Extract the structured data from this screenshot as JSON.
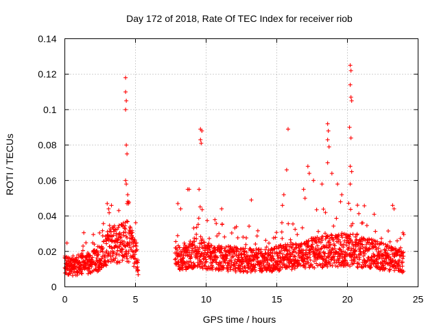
{
  "chart_data": {
    "type": "scatter",
    "title": "Day 172 of 2018, Rate Of TEC Index for receiver riob",
    "xlabel": "GPS time / hours",
    "ylabel": "ROTI / TECUs",
    "xlim": [
      0,
      25
    ],
    "ylim": [
      0,
      0.14
    ],
    "grid": true,
    "marker": "+",
    "color": "#ff0000",
    "x_ticks": [
      "0",
      "5",
      "10",
      "15",
      "20",
      "25"
    ],
    "y_ticks": [
      "0",
      "0.02",
      "0.04",
      "0.06",
      "0.08",
      "0.1",
      "0.12",
      "0.14"
    ],
    "x_tick_values": [
      0,
      5,
      10,
      15,
      20,
      25
    ],
    "y_tick_values": [
      0,
      0.02,
      0.04,
      0.06,
      0.08,
      0.1,
      0.12,
      0.14
    ],
    "series": [
      {
        "name": "ROTI",
        "baseline": [
          [
            0.0,
            0.012
          ],
          [
            0.5,
            0.011
          ],
          [
            1.0,
            0.012
          ],
          [
            1.5,
            0.013
          ],
          [
            2.0,
            0.014
          ],
          [
            2.5,
            0.017
          ],
          [
            3.0,
            0.022
          ],
          [
            3.5,
            0.024
          ],
          [
            4.0,
            0.025
          ],
          [
            4.5,
            0.026
          ],
          [
            5.0,
            0.018
          ],
          [
            5.2,
            0.012
          ],
          [
            7.8,
            0.018
          ],
          [
            8.5,
            0.017
          ],
          [
            9.5,
            0.02
          ],
          [
            10.5,
            0.016
          ],
          [
            11.5,
            0.016
          ],
          [
            12.5,
            0.015
          ],
          [
            13.5,
            0.015
          ],
          [
            14.5,
            0.015
          ],
          [
            15.5,
            0.017
          ],
          [
            16.5,
            0.017
          ],
          [
            17.5,
            0.019
          ],
          [
            18.5,
            0.02
          ],
          [
            19.5,
            0.021
          ],
          [
            20.5,
            0.02
          ],
          [
            21.5,
            0.019
          ],
          [
            22.5,
            0.017
          ],
          [
            23.5,
            0.015
          ],
          [
            24.0,
            0.014
          ]
        ],
        "gap": [
          5.2,
          7.8
        ],
        "peaks": [
          [
            4.3,
            0.118
          ],
          [
            4.3,
            0.11
          ],
          [
            4.35,
            0.105
          ],
          [
            4.3,
            0.1
          ],
          [
            4.35,
            0.08
          ],
          [
            4.4,
            0.075
          ],
          [
            4.3,
            0.06
          ],
          [
            4.35,
            0.058
          ],
          [
            4.45,
            0.052
          ],
          [
            4.4,
            0.047
          ],
          [
            9.6,
            0.089
          ],
          [
            9.7,
            0.088
          ],
          [
            9.6,
            0.083
          ],
          [
            9.65,
            0.081
          ],
          [
            15.8,
            0.089
          ],
          [
            15.7,
            0.066
          ],
          [
            15.5,
            0.052
          ],
          [
            15.4,
            0.046
          ],
          [
            18.6,
            0.092
          ],
          [
            18.65,
            0.088
          ],
          [
            18.6,
            0.083
          ],
          [
            18.7,
            0.079
          ],
          [
            18.6,
            0.07
          ],
          [
            20.2,
            0.125
          ],
          [
            20.25,
            0.122
          ],
          [
            20.2,
            0.114
          ],
          [
            20.25,
            0.107
          ],
          [
            20.3,
            0.105
          ],
          [
            20.15,
            0.09
          ],
          [
            20.25,
            0.084
          ],
          [
            20.2,
            0.068
          ],
          [
            20.3,
            0.065
          ],
          [
            20.2,
            0.058
          ],
          [
            17.2,
            0.068
          ],
          [
            17.3,
            0.064
          ],
          [
            17.6,
            0.06
          ],
          [
            18.2,
            0.058
          ],
          [
            18.9,
            0.064
          ],
          [
            19.3,
            0.058
          ],
          [
            19.6,
            0.052
          ],
          [
            16.9,
            0.055
          ],
          [
            17.0,
            0.05
          ],
          [
            23.2,
            0.046
          ],
          [
            23.3,
            0.044
          ],
          [
            3.0,
            0.047
          ],
          [
            3.3,
            0.046
          ],
          [
            3.1,
            0.044
          ],
          [
            8.7,
            0.055
          ],
          [
            8.8,
            0.055
          ],
          [
            9.5,
            0.055
          ],
          [
            13.2,
            0.049
          ],
          [
            11.1,
            0.044
          ],
          [
            8.0,
            0.047
          ],
          [
            8.2,
            0.044
          ]
        ]
      }
    ]
  }
}
